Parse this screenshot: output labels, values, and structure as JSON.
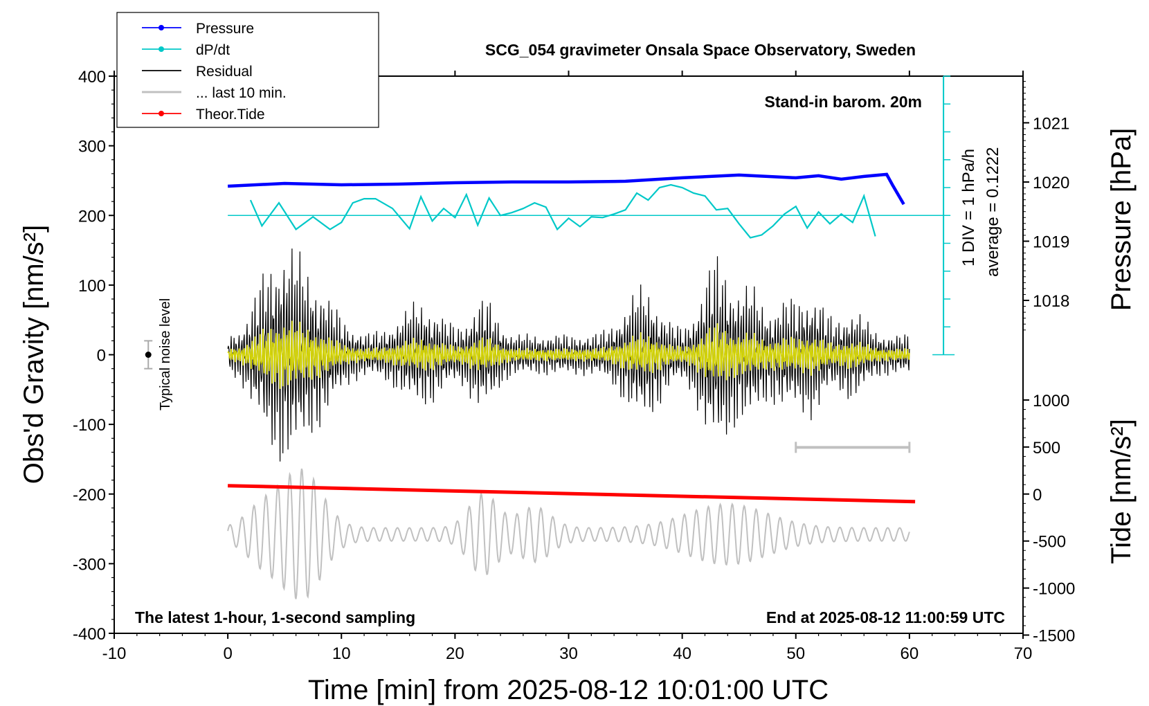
{
  "title": "SCG_054 gravimeter Onsala Space Observatory, Sweden",
  "notes": {
    "barometer": "Stand-in barom. 20m",
    "window": "The latest 1-hour, 1-second sampling",
    "end": "End at 2025-08-12 11:00:59 UTC",
    "noise": "Typical noise level",
    "dpdt_scale": "1 DIV = 1 hPa/h",
    "dpdt_average": "average = 0.1222"
  },
  "axis_labels": {
    "x": "Time [min] from 2025-08-12 10:01:00 UTC",
    "y_left": "Obs'd Gravity [nm/s²]",
    "y_right_top": "Pressure [hPa]",
    "y_right_bottom": "Tide [nm/s²]"
  },
  "colors": {
    "pressure": "#0000ff",
    "dpdt": "#00c8c8",
    "residual": "#000000",
    "last10": "#c0c0c0",
    "tide": "#ff0000",
    "highlight": "#d2d200"
  },
  "legend": [
    {
      "label": "Pressure",
      "key": "pressure",
      "marker": true
    },
    {
      "label": "dP/dt",
      "key": "dpdt",
      "marker": true
    },
    {
      "label": "Residual",
      "key": "residual",
      "marker": false
    },
    {
      "label": "... last 10 min.",
      "key": "last10",
      "marker": false
    },
    {
      "label": "Theor.Tide",
      "key": "tide",
      "marker": true
    }
  ],
  "chart_data": {
    "type": "line",
    "xlim": [
      -10,
      70
    ],
    "ylim": [
      -400,
      400
    ],
    "x_ticks": [
      "-10",
      "0",
      "10",
      "20",
      "30",
      "40",
      "50",
      "60",
      "70"
    ],
    "y_ticks": [
      "-400",
      "-300",
      "-200",
      "-100",
      "0",
      "100",
      "200",
      "300",
      "400"
    ],
    "pressure_axis": {
      "ticks": [
        "1018",
        "1019",
        "1020",
        "1021"
      ],
      "values": [
        1018,
        1019,
        1020,
        1021
      ],
      "gravity_equiv_at_1018": 78,
      "gravity_per_hpa": 85
    },
    "tide_axis": {
      "ticks": [
        "-1500",
        "-1000",
        "-500",
        "0",
        "500",
        "1000"
      ],
      "values": [
        -1500,
        -1000,
        -500,
        0,
        500,
        1000
      ],
      "gravity_equiv_at_0": -200,
      "gravity_per_unit": 0.135
    },
    "pressure_series": {
      "x": [
        0,
        5,
        10,
        15,
        20,
        25,
        30,
        35,
        40,
        45,
        50,
        52,
        54,
        56,
        58,
        58.5,
        59.5
      ],
      "y": [
        242,
        246,
        244,
        245,
        247,
        248,
        248,
        249,
        254,
        258,
        254,
        257,
        252,
        256,
        259,
        244,
        216
      ]
    },
    "dpdt_series": {
      "x": [
        2,
        3,
        4.5,
        6,
        7.5,
        9,
        10,
        11,
        12,
        13,
        14.5,
        16,
        17,
        18,
        19,
        20,
        21,
        22,
        23,
        24,
        25,
        26,
        27,
        28,
        29,
        30,
        31,
        32,
        33,
        34,
        35,
        36,
        37,
        38,
        39,
        40,
        41,
        42,
        43,
        44,
        45,
        46,
        47,
        48,
        49,
        50,
        51,
        52,
        53,
        54,
        55,
        56,
        57
      ],
      "y": [
        222,
        185,
        218,
        180,
        198,
        180,
        190,
        218,
        224,
        224,
        210,
        181,
        227,
        192,
        210,
        197,
        230,
        186,
        225,
        200,
        204,
        210,
        218,
        212,
        180,
        196,
        184,
        198,
        197,
        202,
        208,
        232,
        222,
        240,
        244,
        240,
        232,
        228,
        208,
        210,
        188,
        168,
        172,
        185,
        202,
        213,
        182,
        205,
        188,
        202,
        190,
        228,
        170
      ],
      "zero_line_gravity": 200,
      "zero_line_x": [
        0,
        63
      ]
    },
    "residual": {
      "x_range": [
        0,
        60
      ],
      "amplitude_nm_s2": 160,
      "description": "1-second residual gravity"
    },
    "last_10_min_bar": {
      "x": [
        50,
        60
      ],
      "y": -133
    },
    "theoretical_tide": {
      "x": [
        0,
        60.5
      ],
      "y": [
        -188,
        -211
      ]
    },
    "noise_marker": {
      "x": -7,
      "y": 0,
      "halfwidth": 20
    },
    "dpdt_scale_bar": {
      "x": 63,
      "y_range": [
        0,
        400
      ],
      "div_gravity": 40
    }
  }
}
